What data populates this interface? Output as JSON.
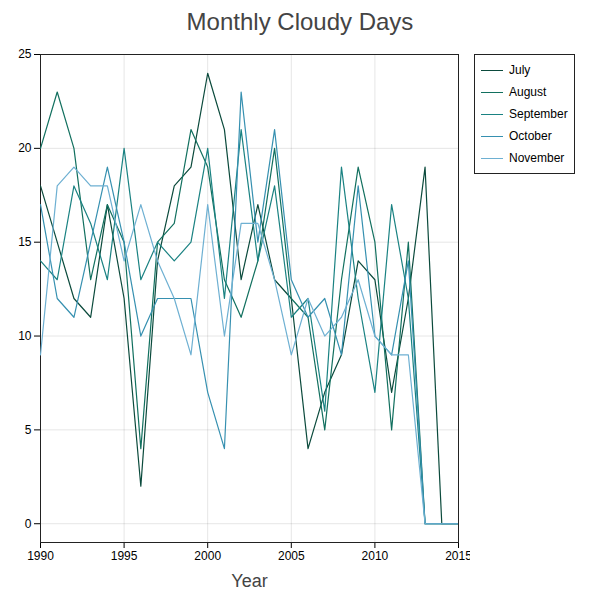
{
  "chart_data": {
    "type": "line",
    "title": "Monthly Cloudy Days",
    "xlabel": "Year",
    "x": [
      1990,
      1991,
      1992,
      1993,
      1994,
      1995,
      1996,
      1997,
      1998,
      1999,
      2000,
      2001,
      2002,
      2003,
      2004,
      2005,
      2006,
      2007,
      2008,
      2009,
      2010,
      2011,
      2012,
      2013,
      2014,
      2015
    ],
    "series": [
      {
        "name": "July",
        "color": "#0b4a3c",
        "values": [
          18,
          15,
          12,
          11,
          17,
          12,
          2,
          14,
          18,
          19,
          24,
          21,
          13,
          17,
          13,
          12,
          4,
          7,
          9,
          14,
          13,
          7,
          12,
          19,
          0,
          0
        ]
      },
      {
        "name": "August",
        "color": "#12705f",
        "values": [
          20,
          23,
          20,
          13,
          17,
          15,
          4,
          15,
          16,
          21,
          19,
          13,
          11,
          14,
          20,
          12,
          11,
          5,
          13,
          19,
          15,
          5,
          15,
          0,
          0,
          0
        ]
      },
      {
        "name": "September",
        "color": "#1a8282",
        "values": [
          14,
          13,
          18,
          16,
          13,
          20,
          13,
          15,
          14,
          15,
          20,
          12,
          21,
          14,
          18,
          11,
          12,
          6,
          19,
          12,
          7,
          17,
          12,
          0,
          0,
          0
        ]
      },
      {
        "name": "October",
        "color": "#3690b0",
        "values": [
          17,
          12,
          11,
          15,
          19,
          15,
          10,
          12,
          12,
          12,
          7,
          4,
          23,
          15,
          21,
          13,
          11,
          12,
          9,
          18,
          10,
          9,
          14,
          0,
          0,
          0
        ]
      },
      {
        "name": "November",
        "color": "#6eb0d2",
        "values": [
          9,
          18,
          19,
          18,
          18,
          14,
          17,
          14,
          12,
          9,
          17,
          10,
          16,
          16,
          13,
          9,
          12,
          10,
          11,
          13,
          10,
          9,
          9,
          0,
          0,
          0
        ]
      }
    ],
    "xlim": [
      1990,
      2015
    ],
    "xticks": [
      1990,
      1995,
      2000,
      2005,
      2010,
      2015
    ],
    "ylim": [
      -1,
      25
    ],
    "yticks": [
      0,
      5,
      10,
      15,
      20,
      25
    ],
    "grid": true,
    "legend": "right"
  }
}
